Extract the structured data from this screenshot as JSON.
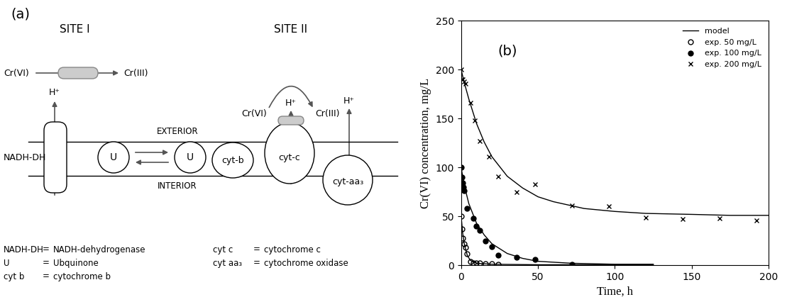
{
  "diagram": {
    "panel_label": "(a)",
    "sites": [
      "SITE I",
      "SITE II"
    ],
    "membrane": {
      "exterior": "EXTERIOR",
      "interior": "INTERIOR"
    },
    "site_I": {
      "reactant": "Cr(VI)",
      "product": "Cr(III)",
      "proton": "H⁺"
    },
    "site_II": {
      "reactant": "Cr(VI)",
      "product": "Cr(III)",
      "protons": [
        "H⁺",
        "H⁺"
      ]
    },
    "nodes": [
      {
        "label": "NADH-DH"
      },
      {
        "label": "U"
      },
      {
        "label": "U"
      },
      {
        "label": "cyt-b"
      },
      {
        "label": "cyt-c"
      },
      {
        "label": "cyt-aa₃"
      }
    ],
    "key": [
      [
        "NADH-DH",
        "=",
        "NADH-dehydrogenase"
      ],
      [
        "U",
        "=",
        "Ubquinone"
      ],
      [
        "cyt b",
        "=",
        "cytochrome b"
      ],
      [
        "cyt c",
        "=",
        "cytochrome c"
      ],
      [
        "cyt aa₃",
        "=",
        "cytochrome oxidase"
      ]
    ]
  },
  "chart_data": {
    "type": "scatter",
    "panel_label": "(b)",
    "x_label": "Time, h",
    "y_label": "Cr(VI) concentration, mg/L",
    "xlim": [
      0,
      200
    ],
    "xticks": [
      0,
      50,
      100,
      150,
      200
    ],
    "ylim": [
      0,
      250
    ],
    "yticks": [
      0,
      50,
      100,
      150,
      200,
      250
    ],
    "legend": "upper right",
    "series": [
      {
        "name": "model",
        "type": "line",
        "color": "#000000",
        "line_style": "solid",
        "curves": [
          {
            "x": [
              0,
              2,
              5,
              10,
              15,
              20,
              30,
              40,
              50,
              60,
              80,
              100,
              120,
              150,
              175,
              200
            ],
            "values": [
              200,
              187,
              170,
              145,
              126,
              111,
              91,
              79,
              70,
              65,
              58,
              55,
              53,
              52,
              51,
              51
            ]
          },
          {
            "x": [
              0,
              2,
              5,
              10,
              15,
              20,
              30,
              40,
              50,
              72,
              100,
              125
            ],
            "values": [
              100,
              82,
              63,
              43,
              31,
              22,
              12,
              7,
              4,
              2,
              1,
              1
            ]
          },
          {
            "x": [
              0,
              1,
              2,
              4,
              6,
              10,
              20,
              50,
              100,
              125
            ],
            "values": [
              50,
              33,
              22,
              10,
              5,
              2,
              1,
              0.5,
              0.5,
              0.5
            ]
          }
        ]
      },
      {
        "name": "exp. 50 mg/L",
        "type": "scatter",
        "marker": "circle-open",
        "color": "#000000",
        "x": [
          0,
          0.5,
          1,
          2,
          3,
          4,
          6,
          8,
          10,
          12,
          16,
          20,
          24
        ],
        "values": [
          50,
          37,
          28,
          22,
          18,
          12,
          4,
          2,
          2,
          2,
          1.5,
          1.5,
          1
        ]
      },
      {
        "name": "exp. 100 mg/L",
        "type": "scatter",
        "marker": "circle",
        "color": "#000000",
        "x": [
          0,
          0.5,
          1,
          1.5,
          2,
          4,
          8,
          10,
          12,
          16,
          20,
          24,
          36,
          48,
          72
        ],
        "values": [
          100,
          90,
          84,
          80,
          76,
          58,
          48,
          40,
          36,
          25,
          19,
          10,
          8,
          6,
          1
        ]
      },
      {
        "name": "exp. 200 mg/L",
        "type": "scatter",
        "marker": "x",
        "color": "#000000",
        "x": [
          0,
          0.5,
          1,
          2,
          3,
          6,
          9,
          12,
          18,
          24,
          36,
          48,
          72,
          96,
          120,
          144,
          168,
          192
        ],
        "values": [
          200,
          190,
          190,
          188,
          186,
          166,
          148,
          127,
          111,
          91,
          75,
          83,
          61,
          60,
          49,
          47,
          48,
          46
        ]
      }
    ]
  }
}
